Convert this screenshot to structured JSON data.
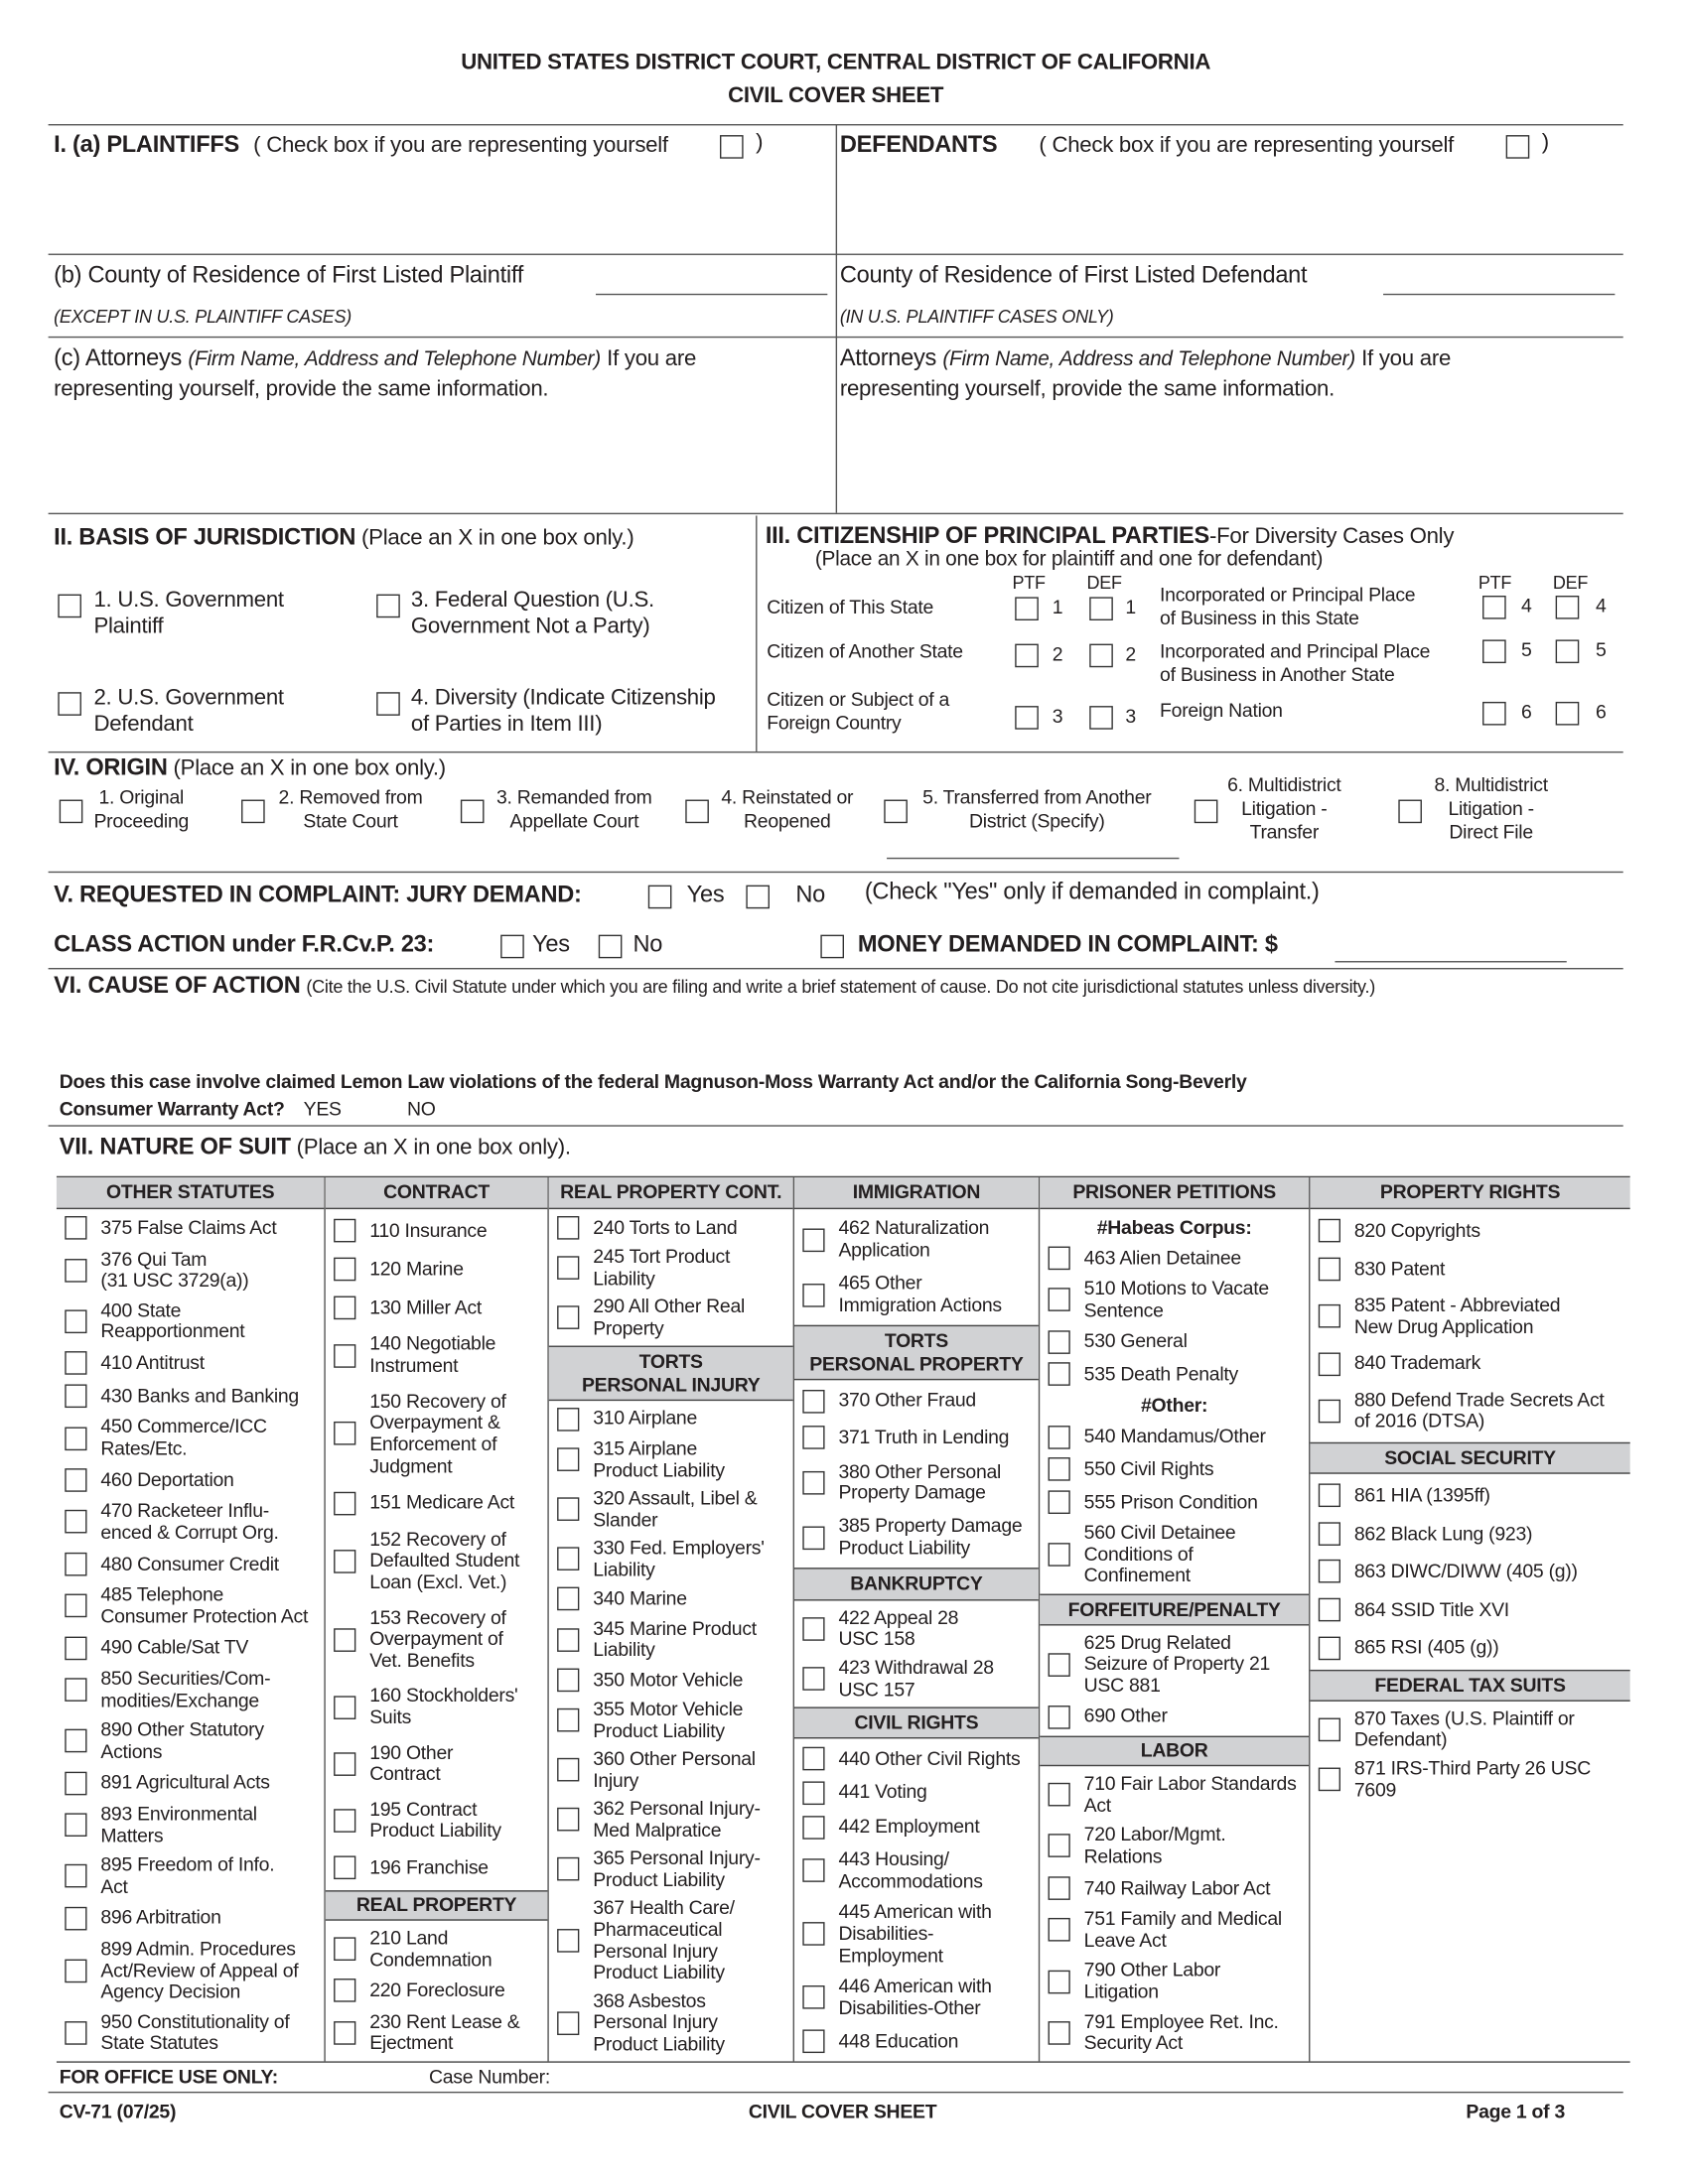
{
  "header": {
    "title": "UNITED STATES DISTRICT COURT, CENTRAL DISTRICT OF CALIFORNIA",
    "subtitle": "CIVIL COVER SHEET"
  },
  "section1": {
    "plaintiffs_label": "I. (a) PLAINTIFFS",
    "plaintiffs_check": "( Check box if you are representing yourself",
    "plaintiffs_close": ")",
    "defendants_label": "DEFENDANTS",
    "defendants_check": "( Check box if you are representing yourself",
    "defendants_close": ")",
    "county_plaintiff": "(b) County of Residence of First Listed Plaintiff",
    "county_plaintiff_note": "(EXCEPT IN U.S. PLAINTIFF CASES)",
    "county_defendant": "County of Residence of First Listed Defendant",
    "county_defendant_note": "(IN U.S. PLAINTIFF CASES ONLY)",
    "attorneys_plaintiff_a": "(c) Attorneys",
    "attorneys_plaintiff_b": "(Firm Name, Address and Telephone Number)",
    "attorneys_plaintiff_c": "If you are",
    "attorneys_plaintiff_d": "representing yourself, provide the same information.",
    "attorneys_defendant_a": "Attorneys",
    "attorneys_defendant_b": "(Firm Name, Address and Telephone Number)",
    "attorneys_defendant_c": "If you are",
    "attorneys_defendant_d": "representing yourself, provide the same information."
  },
  "section2": {
    "title": "II.  BASIS OF JURISDICTION",
    "note": "(Place an X in one box only.)",
    "options": [
      "1. U.S. Government\nPlaintiff",
      "3. Federal Question (U.S.\nGovernment Not a Party)",
      "2. U.S. Government\nDefendant",
      "4. Diversity (Indicate Citizenship\nof Parties in Item III)"
    ]
  },
  "section3": {
    "title": "III. CITIZENSHIP OF PRINCIPAL PARTIES",
    "title_note": "-For Diversity Cases Only",
    "subtitle": "(Place an X in one box for plaintiff and one for defendant)",
    "ptf": "PTF",
    "def": "DEF",
    "left_rows": [
      {
        "label": "Citizen of This State",
        "n": "1"
      },
      {
        "label": "Citizen of Another State",
        "n": "2"
      },
      {
        "label": "Citizen or Subject of a\nForeign Country",
        "n": "3"
      }
    ],
    "right_rows": [
      {
        "label": "Incorporated or Principal Place\nof Business in this State",
        "n": "4"
      },
      {
        "label": "Incorporated and Principal Place\nof Business in Another State",
        "n": "5"
      },
      {
        "label": "Foreign Nation",
        "n": "6"
      }
    ]
  },
  "section4": {
    "title": "IV. ORIGIN",
    "note": "(Place an X in one box only.)",
    "options": [
      "1. Original\nProceeding",
      "2. Removed from\nState Court",
      "3. Remanded from\nAppellate Court",
      "4. Reinstated or\nReopened",
      "5. Transferred from Another\nDistrict  (Specify)",
      "6. Multidistrict\nLitigation -\nTransfer",
      "8. Multidistrict\nLitigation -\nDirect File"
    ]
  },
  "section5": {
    "title": "V. REQUESTED IN COMPLAINT:  JURY DEMAND:",
    "yes": "Yes",
    "no": "No",
    "note": "(Check \"Yes\" only if demanded in complaint.)",
    "class_action": "CLASS ACTION under F.R.Cv.P. 23:",
    "ca_yes": "Yes",
    "ca_no": "No",
    "money": "MONEY DEMANDED IN COMPLAINT:  $"
  },
  "section6": {
    "title": "VI. CAUSE OF ACTION",
    "note": "(Cite the U.S. Civil Statute under which you are filing and write a brief statement of cause.  Do not cite jurisdictional statutes unless diversity.)"
  },
  "lemon": {
    "q1": "Does this case involve claimed Lemon Law violations of the federal Magnuson-Moss Warranty Act and/or the California Song-Beverly",
    "q2": "Consumer Warranty Act?",
    "yes": "YES",
    "no": "NO"
  },
  "section7": {
    "title": "VII. NATURE OF SUIT",
    "note": "(Place an X in one box only).",
    "columns": [
      {
        "sections": [
          {
            "header": "OTHER STATUTES",
            "items": [
              "375  False Claims Act",
              "376 Qui Tam\n(31 USC 3729(a))",
              "400  State\nReapportionment",
              "410  Antitrust",
              "430  Banks and Banking",
              "450  Commerce/ICC\nRates/Etc.",
              "460  Deportation",
              "470  Racketeer Influ-\nenced & Corrupt Org.",
              "480  Consumer Credit",
              "485 Telephone\nConsumer Protection Act",
              "490  Cable/Sat TV",
              "850  Securities/Com-\nmodities/Exchange",
              "890  Other Statutory\nActions",
              "891  Agricultural Acts",
              "893  Environmental\nMatters",
              "895  Freedom of Info.\nAct",
              "896  Arbitration",
              "899  Admin. Procedures\nAct/Review of Appeal of\nAgency Decision",
              "950  Constitutionality of\nState Statutes"
            ]
          }
        ]
      },
      {
        "sections": [
          {
            "header": "CONTRACT",
            "items": [
              "110 Insurance",
              "120 Marine",
              "130 Miller Act",
              "140 Negotiable\nInstrument",
              "150 Recovery of\nOverpayment &\nEnforcement of\nJudgment",
              "151 Medicare Act",
              "152 Recovery of\nDefaulted Student\nLoan (Excl. Vet.)",
              "153 Recovery of\nOverpayment of\nVet. Benefits",
              "160 Stockholders'\nSuits",
              "190 Other\nContract",
              "195 Contract\nProduct Liability",
              "196 Franchise"
            ]
          },
          {
            "header": "REAL PROPERTY",
            "items": [
              "210 Land\nCondemnation",
              "220 Foreclosure",
              "230 Rent Lease &\nEjectment"
            ]
          }
        ]
      },
      {
        "sections": [
          {
            "header": "REAL PROPERTY CONT.",
            "items": [
              "240 Torts to Land",
              "245 Tort Product\nLiability",
              "290 All Other Real\nProperty"
            ]
          },
          {
            "header": "TORTS\nPERSONAL INJURY",
            "items": [
              "310 Airplane",
              "315 Airplane\nProduct Liability",
              "320 Assault, Libel &\nSlander",
              "330 Fed. Employers'\nLiability",
              "340 Marine",
              "345 Marine Product\nLiability",
              "350 Motor Vehicle",
              "355 Motor Vehicle\nProduct Liability",
              "360 Other Personal\nInjury",
              "362  Personal Injury-\nMed Malpratice",
              "365 Personal Injury-\nProduct Liability",
              "367 Health Care/\nPharmaceutical\nPersonal Injury\nProduct Liability",
              "368 Asbestos\nPersonal Injury\nProduct Liability"
            ]
          }
        ]
      },
      {
        "sections": [
          {
            "header": "IMMIGRATION",
            "items": [
              "462 Naturalization\nApplication",
              "465 Other\nImmigration Actions"
            ]
          },
          {
            "header": "TORTS\nPERSONAL PROPERTY",
            "items": [
              "370 Other Fraud",
              "371 Truth in Lending",
              "380 Other Personal\nProperty Damage",
              "385 Property Damage\nProduct Liability"
            ]
          },
          {
            "header": "BANKRUPTCY",
            "items": [
              "422 Appeal 28\nUSC 158",
              "423 Withdrawal 28\nUSC 157"
            ]
          },
          {
            "header": "CIVIL RIGHTS",
            "items": [
              "440 Other Civil Rights",
              "441 Voting",
              "442 Employment",
              "443 Housing/\nAccommodations",
              "445 American with\nDisabilities-\nEmployment",
              "446 American with\nDisabilities-Other",
              "448 Education"
            ]
          }
        ]
      },
      {
        "sections": [
          {
            "header": "PRISONER PETITIONS",
            "items": [
              "#Habeas Corpus:",
              "463 Alien Detainee",
              "510 Motions to Vacate\nSentence",
              "530 General",
              "535 Death Penalty",
              "#Other:",
              "540 Mandamus/Other",
              "550 Civil Rights",
              "555 Prison Condition",
              "560 Civil Detainee\nConditions of\nConfinement"
            ]
          },
          {
            "header": "FORFEITURE/PENALTY",
            "items": [
              "625 Drug Related\nSeizure of Property 21\nUSC 881",
              "690 Other"
            ]
          },
          {
            "header": "LABOR",
            "items": [
              "710 Fair Labor Standards\nAct",
              "720 Labor/Mgmt.\nRelations",
              "740 Railway Labor Act",
              "751 Family and Medical\nLeave Act",
              "790 Other Labor\nLitigation",
              "791 Employee Ret. Inc.\nSecurity Act"
            ]
          }
        ]
      },
      {
        "sections": [
          {
            "header": "PROPERTY RIGHTS",
            "items": [
              "820 Copyrights",
              "830 Patent",
              "835 Patent - Abbreviated\nNew Drug Application",
              "840 Trademark",
              "880 Defend Trade Secrets Act\nof 2016 (DTSA)"
            ]
          },
          {
            "header": "SOCIAL SECURITY",
            "items": [
              "861 HIA (1395ff)",
              "862 Black Lung (923)",
              "863 DIWC/DIWW (405 (g))",
              "864 SSID Title XVI",
              "865 RSI (405 (g))"
            ]
          },
          {
            "header": "FEDERAL TAX SUITS",
            "items": [
              "870 Taxes (U.S. Plaintiff or\nDefendant)",
              "871 IRS-Third Party 26 USC\n7609"
            ]
          }
        ]
      }
    ]
  },
  "office": {
    "label": "FOR OFFICE USE ONLY:",
    "case_number": "Case Number:"
  },
  "footer": {
    "form": "CV-71 (07/25)",
    "title": "CIVIL COVER SHEET",
    "page": "Page 1 of 3"
  }
}
